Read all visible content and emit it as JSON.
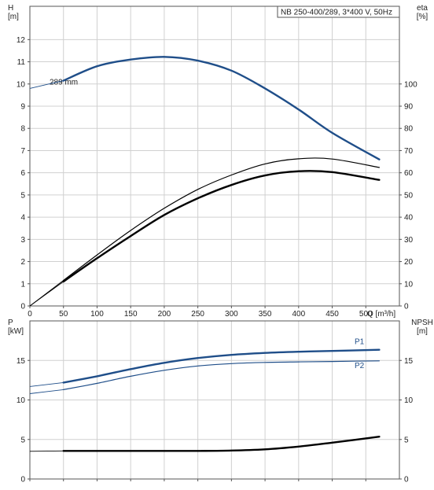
{
  "chart_data": [
    {
      "type": "line",
      "title": "NB 250-400/289, 3*400 V, 50Hz",
      "xlabel": "Q [m³/h]",
      "ylabel": "H\n[m]",
      "y2label": "eta\n[%]",
      "xlim": [
        0,
        550
      ],
      "ylim": [
        0,
        13.5
      ],
      "y2lim": [
        0,
        135
      ],
      "xticks": [
        0,
        50,
        100,
        150,
        200,
        250,
        300,
        350,
        400,
        450,
        500
      ],
      "yticks": [
        0,
        1,
        2,
        3,
        4,
        5,
        6,
        7,
        8,
        9,
        10,
        11,
        12
      ],
      "y2ticks": [
        0,
        10,
        20,
        30,
        40,
        50,
        60,
        70,
        80,
        90,
        100
      ],
      "grid": true,
      "annotation": "289 mm",
      "series": [
        {
          "axis": "left",
          "color": "#1f4e89",
          "width": 2.4,
          "x": [
            0,
            50,
            100,
            150,
            200,
            250,
            300,
            350,
            400,
            450,
            520
          ],
          "y": [
            9.8,
            10.15,
            10.8,
            11.1,
            11.22,
            11.05,
            10.6,
            9.8,
            8.85,
            7.8,
            6.6
          ],
          "solid_from": 50
        },
        {
          "axis": "right",
          "color": "#000000",
          "width": 1.2,
          "x": [
            0,
            50,
            100,
            150,
            200,
            250,
            300,
            350,
            400,
            450,
            520
          ],
          "y": [
            0,
            11.5,
            23,
            34,
            44,
            52.5,
            59,
            64,
            66.3,
            66.2,
            62.4
          ],
          "solid_from": 50
        },
        {
          "axis": "right",
          "color": "#000000",
          "width": 2.4,
          "x": [
            0,
            50,
            100,
            150,
            200,
            250,
            300,
            350,
            400,
            450,
            520
          ],
          "y": [
            0,
            11,
            21.5,
            31.5,
            41,
            48.5,
            54.5,
            58.8,
            60.7,
            60.3,
            56.8
          ],
          "solid_from": 50
        }
      ]
    },
    {
      "type": "line",
      "ylabel": "P\n[kW]",
      "y2label": "NPSH\n[m]",
      "xlim": [
        0,
        550
      ],
      "ylim": [
        0,
        20
      ],
      "y2lim": [
        0,
        20
      ],
      "xticks": [
        0,
        50,
        100,
        150,
        200,
        250,
        300,
        350,
        400,
        450,
        500
      ],
      "yticks": [
        0,
        5,
        10,
        15
      ],
      "y2ticks": [
        0,
        5,
        10,
        15
      ],
      "grid": true,
      "series": [
        {
          "name": "P1",
          "axis": "left",
          "color": "#1f4e89",
          "width": 2.4,
          "x": [
            0,
            50,
            100,
            150,
            200,
            250,
            300,
            350,
            400,
            450,
            520
          ],
          "y": [
            11.7,
            12.2,
            13.0,
            13.9,
            14.7,
            15.3,
            15.7,
            15.95,
            16.1,
            16.2,
            16.35
          ],
          "solid_from": 50
        },
        {
          "name": "P2",
          "axis": "left",
          "color": "#1f4e89",
          "width": 1.2,
          "x": [
            0,
            50,
            100,
            150,
            200,
            250,
            300,
            350,
            400,
            450,
            520
          ],
          "y": [
            10.8,
            11.3,
            12.1,
            13.0,
            13.75,
            14.3,
            14.6,
            14.75,
            14.82,
            14.87,
            14.95
          ],
          "solid_from": 50
        },
        {
          "axis": "right",
          "color": "#000000",
          "width": 2.4,
          "x": [
            0,
            50,
            100,
            150,
            200,
            250,
            300,
            350,
            400,
            450,
            520
          ],
          "y": [
            3.5,
            3.55,
            3.55,
            3.55,
            3.55,
            3.55,
            3.6,
            3.75,
            4.1,
            4.6,
            5.35
          ],
          "solid_from": 50
        }
      ]
    }
  ]
}
